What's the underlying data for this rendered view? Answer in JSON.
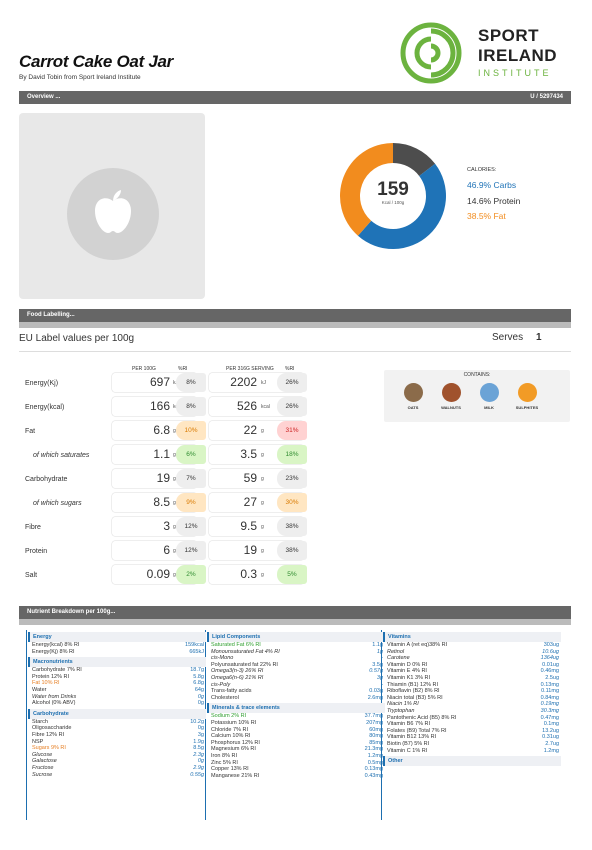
{
  "header": {
    "title": "Carrot Cake Oat Jar",
    "byline": "By David Tobin from Sport Ireland Institute",
    "logo": {
      "line1": "SPORT",
      "line2": "IRELAND",
      "line3": "INSTITUTE"
    }
  },
  "overview_bar": {
    "label": "Overview ...",
    "code": "U / 5297434"
  },
  "calories": {
    "value": "159",
    "unit": "Kcal / 100g",
    "label": "CALORIES:",
    "carbs": "46.9% Carbs",
    "protein": "14.6% Protein",
    "fat": "38.5% Fat",
    "carbs_pct": 46.9,
    "protein_pct": 14.6,
    "fat_pct": 38.5,
    "colors": {
      "carbs": "#1f73b7",
      "protein": "#4d4d4d",
      "fat": "#f28c1e"
    }
  },
  "food_labelling_bar": {
    "label": "Food Labelling..."
  },
  "eu": {
    "title": "EU Label values per 100g",
    "serves_label": "Serves",
    "serves_value": "1",
    "col_per100": "PER 100G",
    "col_ri1": "%RI",
    "col_serving": "PER 316G SERVING",
    "col_ri2": "%RI",
    "rows": [
      {
        "label": "Energy(Kj)",
        "v1": "697",
        "u1": "kJ",
        "ri1": "8%",
        "c1": "n",
        "v2": "2202",
        "u2": "kJ",
        "ri2": "26%",
        "c2": "n",
        "sub": false
      },
      {
        "label": "Energy(kcal)",
        "v1": "166",
        "u1": "kcal",
        "ri1": "8%",
        "c1": "n",
        "v2": "526",
        "u2": "kcal",
        "ri2": "26%",
        "c2": "n",
        "sub": false
      },
      {
        "label": "Fat",
        "v1": "6.8",
        "u1": "g",
        "ri1": "10%",
        "c1": "a",
        "v2": "22",
        "u2": "g",
        "ri2": "31%",
        "c2": "r",
        "sub": false
      },
      {
        "label": "of which saturates",
        "v1": "1.1",
        "u1": "g",
        "ri1": "6%",
        "c1": "g",
        "v2": "3.5",
        "u2": "g",
        "ri2": "18%",
        "c2": "g",
        "sub": true
      },
      {
        "label": "Carbohydrate",
        "v1": "19",
        "u1": "g",
        "ri1": "7%",
        "c1": "n",
        "v2": "59",
        "u2": "g",
        "ri2": "23%",
        "c2": "n",
        "sub": false
      },
      {
        "label": "of which sugars",
        "v1": "8.5",
        "u1": "g",
        "ri1": "9%",
        "c1": "a",
        "v2": "27",
        "u2": "g",
        "ri2": "30%",
        "c2": "a",
        "sub": true
      },
      {
        "label": "Fibre",
        "v1": "3",
        "u1": "g",
        "ri1": "12%",
        "c1": "n",
        "v2": "9.5",
        "u2": "g",
        "ri2": "38%",
        "c2": "n",
        "sub": false
      },
      {
        "label": "Protein",
        "v1": "6",
        "u1": "g",
        "ri1": "12%",
        "c1": "n",
        "v2": "19",
        "u2": "g",
        "ri2": "38%",
        "c2": "n",
        "sub": false
      },
      {
        "label": "Salt",
        "v1": "0.09",
        "u1": "g",
        "ri1": "2%",
        "c1": "g",
        "v2": "0.3",
        "u2": "g",
        "ri2": "5%",
        "c2": "g",
        "sub": false
      }
    ]
  },
  "contains": {
    "label": "CONTAINS:",
    "items": [
      {
        "name": "OATS",
        "color": "#8b6b4a"
      },
      {
        "name": "WALNUTS",
        "color": "#a0522d"
      },
      {
        "name": "MILK",
        "color": "#6ba3d6"
      },
      {
        "name": "SULPHITES",
        "color": "#f29b26"
      }
    ]
  },
  "breakdown_bar": {
    "label": "Nutrient Breakdown per 100g..."
  },
  "breakdown": {
    "col1": [
      {
        "head": "Energy"
      },
      {
        "name": "Energy(kcal) 8% RI",
        "val": "159kcal"
      },
      {
        "name": "Energy(Kj) 8% RI",
        "val": "665kJ"
      },
      {
        "head": "Macronutrients"
      },
      {
        "name": "Carbohydrate 7% RI",
        "val": "18.7g"
      },
      {
        "name": "Protein 12% RI",
        "val": "5.8g"
      },
      {
        "name": "Fat 10% RI",
        "val": "6.8g",
        "c": "o"
      },
      {
        "name": "Water",
        "val": "64g"
      },
      {
        "name": "Water from Drinks",
        "val": "0g",
        "it": true
      },
      {
        "name": "Alcohol (0% ABV)",
        "val": "0g"
      },
      {
        "head": "Carbohydrate"
      },
      {
        "name": "Starch",
        "val": "10.2g"
      },
      {
        "name": "Oligosaccharide",
        "val": "0g"
      },
      {
        "name": "Fibre 12% RI",
        "val": "3g"
      },
      {
        "name": "NSP",
        "val": "1.9g"
      },
      {
        "name": "Sugars 9% RI",
        "val": "8.5g",
        "c": "o"
      },
      {
        "name": "Glucose",
        "val": "2.3g",
        "it": true
      },
      {
        "name": "Galactose",
        "val": "0g",
        "it": true
      },
      {
        "name": "Fructose",
        "val": "2.9g",
        "it": true
      },
      {
        "name": "Sucrose",
        "val": "0.55g",
        "it": true
      }
    ],
    "col2": [
      {
        "head": "Lipid Components"
      },
      {
        "name": "Saturated Fat 6% RI",
        "val": "1.1g",
        "c": "g"
      },
      {
        "name": "Monounsaturated Fat 4% RI",
        "val": "1g",
        "it": true
      },
      {
        "name": "cis-Mono",
        "val": "-",
        "it": true
      },
      {
        "name": "Polyunsaturated fat 22% RI",
        "val": "3.5g"
      },
      {
        "name": "Omega3(n-3) 26% RI",
        "val": "0.57g",
        "it": true
      },
      {
        "name": "Omega6(n-6) 21% RI",
        "val": "3g",
        "it": true
      },
      {
        "name": "cis-Poly",
        "val": "-",
        "it": true
      },
      {
        "name": "Trans-fatty acids",
        "val": "0.03g"
      },
      {
        "name": "Cholesterol",
        "val": "2.6mg"
      },
      {
        "head": "Minerals & trace elements"
      },
      {
        "name": "Sodium 2% RI",
        "val": "37.7mg",
        "c": "g"
      },
      {
        "name": "Potassium 10% RI",
        "val": "207mg"
      },
      {
        "name": "Chloride 7% RI",
        "val": "60mg"
      },
      {
        "name": "Calcium 10% RI",
        "val": "80mg"
      },
      {
        "name": "Phosphorus 12% RI",
        "val": "85mg"
      },
      {
        "name": "Magnesium 6% RI",
        "val": "21.3mg"
      },
      {
        "name": "Iron 8% RI",
        "val": "1.2mg"
      },
      {
        "name": "Zinc 5% RI",
        "val": "0.5mg"
      },
      {
        "name": "Copper 13% RI",
        "val": "0.13mg"
      },
      {
        "name": "Manganese 21% RI",
        "val": "0.43mg"
      }
    ],
    "col3": [
      {
        "head": "Vitamins"
      },
      {
        "name": "Vitamin A (ret eq)38% RI",
        "val": "303ug"
      },
      {
        "name": "Retinol",
        "val": "10.6ug",
        "it": true
      },
      {
        "name": "Carotene",
        "val": "1364ug",
        "it": true
      },
      {
        "name": "Vitamin D 0% RI",
        "val": "0.01ug"
      },
      {
        "name": "Vitamin E 4% RI",
        "val": "0.46mg"
      },
      {
        "name": "Vitamin K1 3% RI",
        "val": "2.5ug"
      },
      {
        "name": "Thiamin (B1) 12% RI",
        "val": "0.13mg"
      },
      {
        "name": "Riboflavin (B2) 8% RI",
        "val": "0.11mg"
      },
      {
        "name": "Niacin total (B3) 5% RI",
        "val": "0.84mg"
      },
      {
        "name": "Niacin 1% RI",
        "val": "0.19mg",
        "it": true
      },
      {
        "name": "Tryptophan",
        "val": "30.3mg",
        "it": true
      },
      {
        "name": "Pantothenic Acid (B5) 8% RI",
        "val": "0.47mg"
      },
      {
        "name": "Vitamin B6 7% RI",
        "val": "0.1mg"
      },
      {
        "name": "Folates (B9) Total 7% RI",
        "val": "13.2ug"
      },
      {
        "name": "Vitamin B12 13% RI",
        "val": "0.31ug"
      },
      {
        "name": "Biotin (B7) 5% RI",
        "val": "2.7ug"
      },
      {
        "name": "Vitamin C 1% RI",
        "val": "1.2mg"
      },
      {
        "head": "Other"
      }
    ]
  }
}
